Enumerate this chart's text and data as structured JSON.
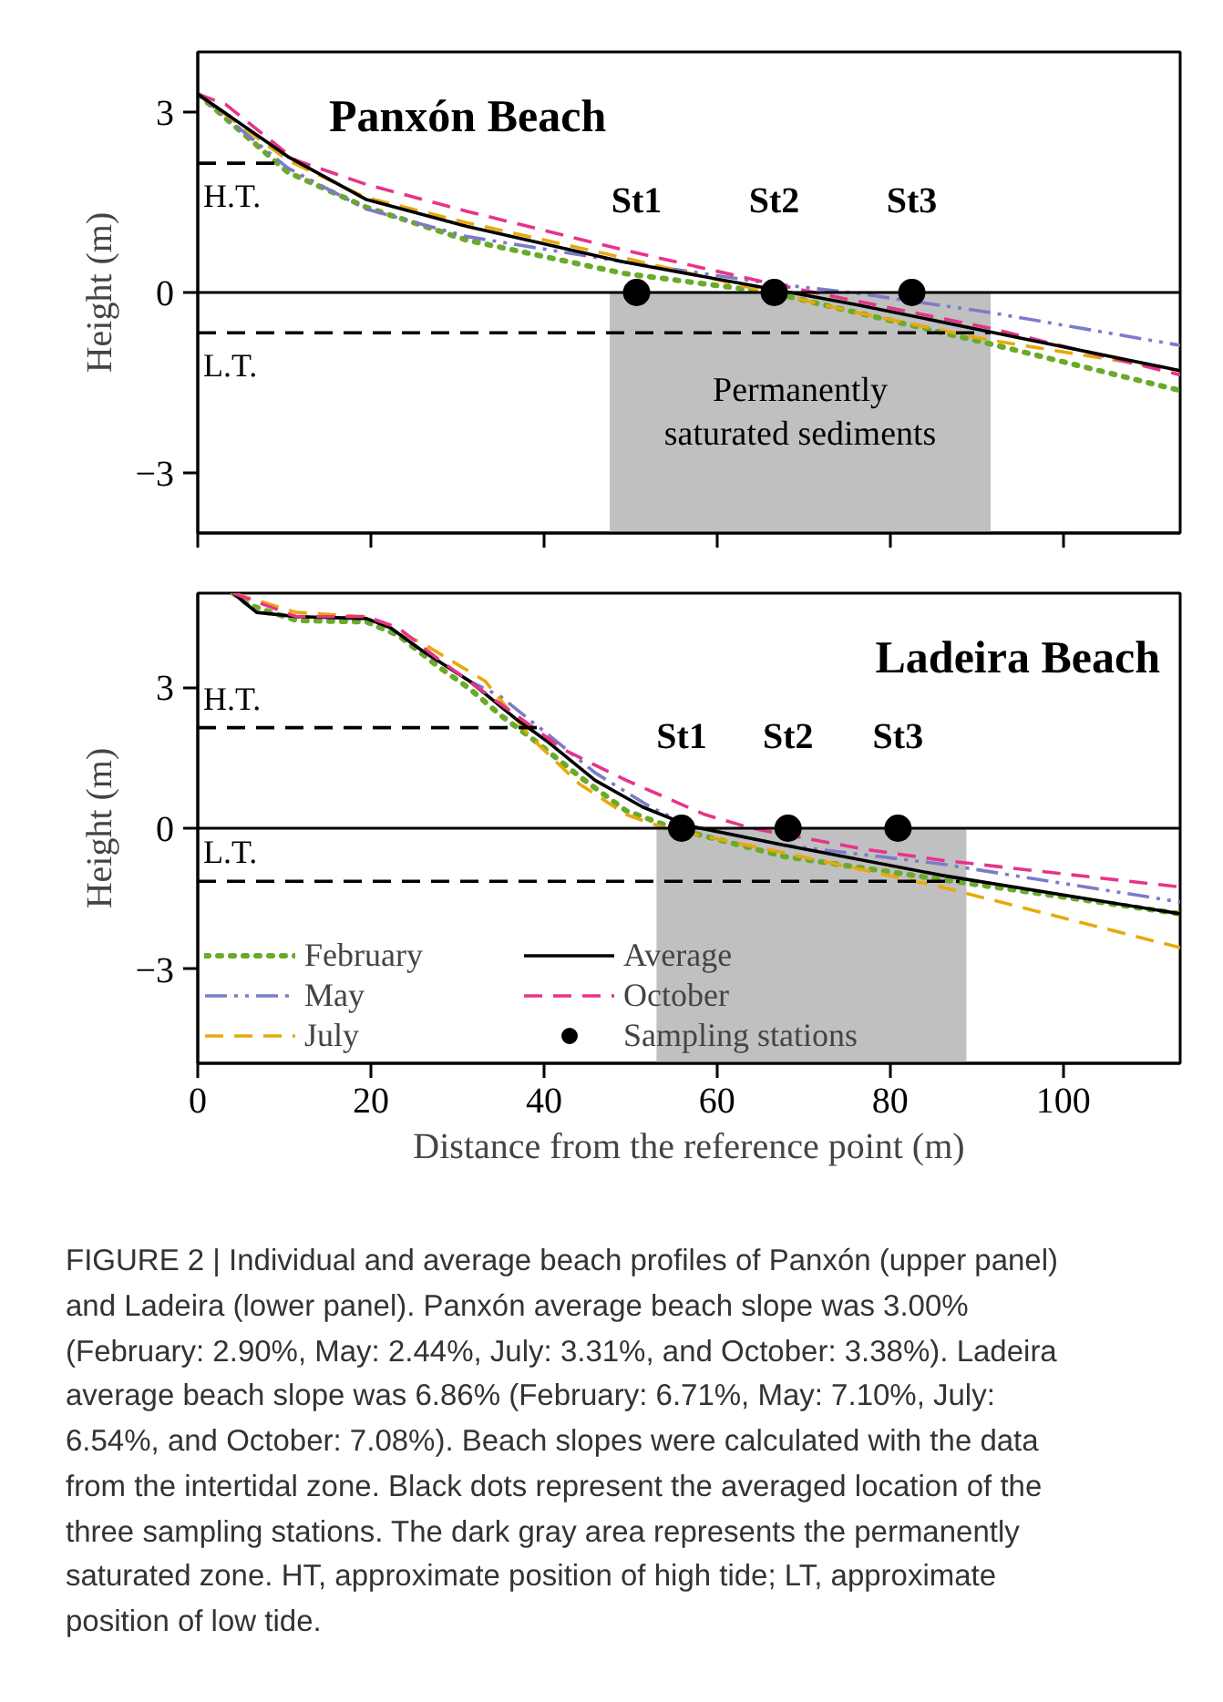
{
  "chart_data": [
    {
      "type": "line",
      "title": "Panxón Beach",
      "ylabel": "Height (m)",
      "xlim": [
        0,
        113.5
      ],
      "ylim": [
        -4,
        4
      ],
      "xticks": [
        0,
        20,
        40,
        60,
        80,
        100
      ],
      "yticks": [
        -3,
        0,
        3
      ],
      "tick_labels": "y",
      "grid": false,
      "legend": false,
      "series": [
        {
          "color": "#6aaa2a",
          "line_style": "dotted",
          "x": [
            0,
            10.4,
            19.4,
            31.1,
            49.1,
            66.2,
            76,
            91.4,
            113.5
          ],
          "values": [
            3.3,
            2.0,
            1.42,
            0.87,
            0.32,
            0.0,
            -0.33,
            -0.85,
            -1.63
          ]
        },
        {
          "color": "#7b7bc8",
          "line_style": "dashdot",
          "x": [
            0,
            10.4,
            19.4,
            31.1,
            49.1,
            66.2,
            76,
            91.4,
            113.5
          ],
          "values": [
            3.3,
            2.07,
            1.39,
            0.93,
            0.51,
            0.15,
            -0.01,
            -0.33,
            -0.88
          ]
        },
        {
          "color": "#e8a90c",
          "line_style": "dashed",
          "x": [
            0,
            10.4,
            19.4,
            31.1,
            49.1,
            66.2,
            76,
            91.4,
            113.5
          ],
          "values": [
            3.3,
            2.2,
            1.58,
            1.16,
            0.58,
            0.0,
            -0.33,
            -0.79,
            -1.3
          ]
        },
        {
          "color": "#e8338a",
          "line_style": "dashed",
          "x": [
            0,
            3.2,
            11.3,
            19.4,
            31.1,
            49.1,
            66.2,
            76,
            91.4,
            113.5
          ],
          "values": [
            3.3,
            3.13,
            2.2,
            1.8,
            1.35,
            0.71,
            0.15,
            -0.14,
            -0.59,
            -1.37
          ]
        },
        {
          "color": "#000000",
          "line_style": "solid",
          "x": [
            0,
            10.4,
            19.4,
            31.1,
            49.1,
            66.2,
            76,
            91.4,
            113.5
          ],
          "values": [
            3.3,
            2.26,
            1.55,
            1.1,
            0.51,
            0.06,
            -0.2,
            -0.65,
            -1.3
          ]
        },
        {
          "color": "#000000",
          "line_style": "dashed",
          "x": [
            0,
            9.9
          ],
          "values": [
            2.15,
            2.15
          ]
        },
        {
          "color": "#000000",
          "line_style": "dashed",
          "x": [
            0,
            91.6
          ],
          "values": [
            -0.67,
            -0.67
          ]
        },
        {
          "type": "scatter",
          "marker": "circle",
          "color": "#000000",
          "x": [
            50.7,
            66.6,
            82.5
          ],
          "values": [
            0,
            0,
            0
          ]
        }
      ],
      "ref_lines": [
        {
          "axis": "y",
          "value": 0,
          "color": "#000000",
          "line_style": "solid"
        }
      ],
      "bands": [
        {
          "axis": "x",
          "from": 47.6,
          "to": 91.6,
          "label": "Permanently\nsaturated sediments",
          "color": "#c0c0c0"
        }
      ],
      "annotations": [
        "H.T.",
        "L.T.",
        "St1",
        "St2",
        "St3"
      ]
    },
    {
      "type": "line",
      "title": "Ladeira Beach",
      "xlabel": "Distance from the reference point (m)",
      "ylabel": "Height (m)",
      "xlim": [
        0,
        113.5
      ],
      "ylim": [
        -5,
        5
      ],
      "xticks": [
        0,
        20,
        40,
        60,
        80,
        100
      ],
      "yticks": [
        -3,
        0,
        3
      ],
      "grid": false,
      "legend": "bottom left",
      "series": [
        {
          "name": "February",
          "color": "#6aaa2a",
          "line_style": "dotted",
          "x": [
            4.1,
            5.9,
            11.4,
            19.5,
            23.2,
            27.7,
            31.4,
            35,
            38.6,
            44.1,
            49.5,
            55,
            67.7,
            85.9,
            113.5
          ],
          "values": [
            5.0,
            4.75,
            4.42,
            4.39,
            4.1,
            3.45,
            2.97,
            2.4,
            1.91,
            1.1,
            0.37,
            0.0,
            -0.6,
            -1.09,
            -1.82
          ]
        },
        {
          "name": "May",
          "color": "#7b7bc8",
          "line_style": "dashdot",
          "x": [
            4.1,
            6.8,
            11.4,
            19.5,
            22.3,
            25.9,
            31.4,
            35,
            40.5,
            45.9,
            52.3,
            56.8,
            67.7,
            85.9,
            113.5
          ],
          "values": [
            5.0,
            4.59,
            4.5,
            4.46,
            4.26,
            3.78,
            3.13,
            2.8,
            1.99,
            1.18,
            0.45,
            0.05,
            -0.36,
            -0.76,
            -1.57
          ]
        },
        {
          "name": "July",
          "color": "#e8a90c",
          "line_style": "dashed",
          "x": [
            4.1,
            11.4,
            19.5,
            25.9,
            33.2,
            38.6,
            44.1,
            49.5,
            54,
            67.7,
            85.9,
            113.5
          ],
          "values": [
            5.0,
            4.59,
            4.5,
            3.94,
            3.13,
            1.91,
            0.94,
            0.29,
            0.0,
            -0.52,
            -1.25,
            -2.54
          ]
        },
        {
          "name": "Average",
          "color": "#000000",
          "line_style": "solid",
          "x": [
            4.1,
            6.8,
            11.4,
            19.5,
            22.3,
            25.9,
            31.4,
            36.8,
            40.5,
            45.9,
            51.4,
            56.8,
            67.7,
            85.9,
            113.5
          ],
          "values": [
            5.0,
            4.59,
            4.5,
            4.46,
            4.26,
            3.78,
            3.13,
            2.32,
            1.83,
            1.02,
            0.45,
            0.05,
            -0.36,
            -1.0,
            -1.82
          ]
        },
        {
          "name": "October",
          "color": "#e8338a",
          "line_style": "dashed",
          "x": [
            4.1,
            11.4,
            19.5,
            23.2,
            27.7,
            35,
            42.3,
            49.5,
            58.6,
            64,
            76.8,
            85.9,
            113.5
          ],
          "values": [
            5.0,
            4.5,
            4.5,
            4.26,
            3.61,
            2.64,
            1.67,
            1.02,
            0.29,
            0.0,
            -0.44,
            -0.68,
            -1.25
          ]
        },
        {
          "type": "scatter",
          "name": "Sampling stations",
          "marker": "circle",
          "color": "#000000",
          "x": [
            55.9,
            68.2,
            80.9
          ],
          "values": [
            0,
            0,
            0
          ]
        },
        {
          "color": "#000000",
          "line_style": "dashed",
          "x": [
            0,
            40
          ],
          "values": [
            2.14,
            2.14
          ]
        },
        {
          "color": "#000000",
          "line_style": "dashed",
          "x": [
            0,
            88
          ],
          "values": [
            -1.13,
            -1.13
          ]
        }
      ],
      "ref_lines": [
        {
          "axis": "y",
          "value": 0,
          "color": "#000000",
          "line_style": "solid"
        }
      ],
      "bands": [
        {
          "axis": "x",
          "from": 53,
          "to": 88.8,
          "color": "#c0c0c0"
        }
      ],
      "annotations": [
        "H.T.",
        "L.T.",
        "St1",
        "St2",
        "St3",
        "FIGURE 2 | Individual and average beach profiles of Panxón (upper panel) and Ladeira (lower panel). Panxón average beach slope was 3.00% (February: 2.90%, May: 2.44%, July: 3.31%, and October: 3.38%). Ladeira average beach slope was 6.86% (February: 6.71%, May: 7.10%, July: 6.54%, and October: 7.08%). Beach slopes were calculated with the data from the intertidal zone. Black dots represent the averaged location of the three sampling stations. The dark gray area represents the permanently saturated zone. HT, approximate position of high tide; LT, approximate position of low tide."
      ]
    }
  ]
}
